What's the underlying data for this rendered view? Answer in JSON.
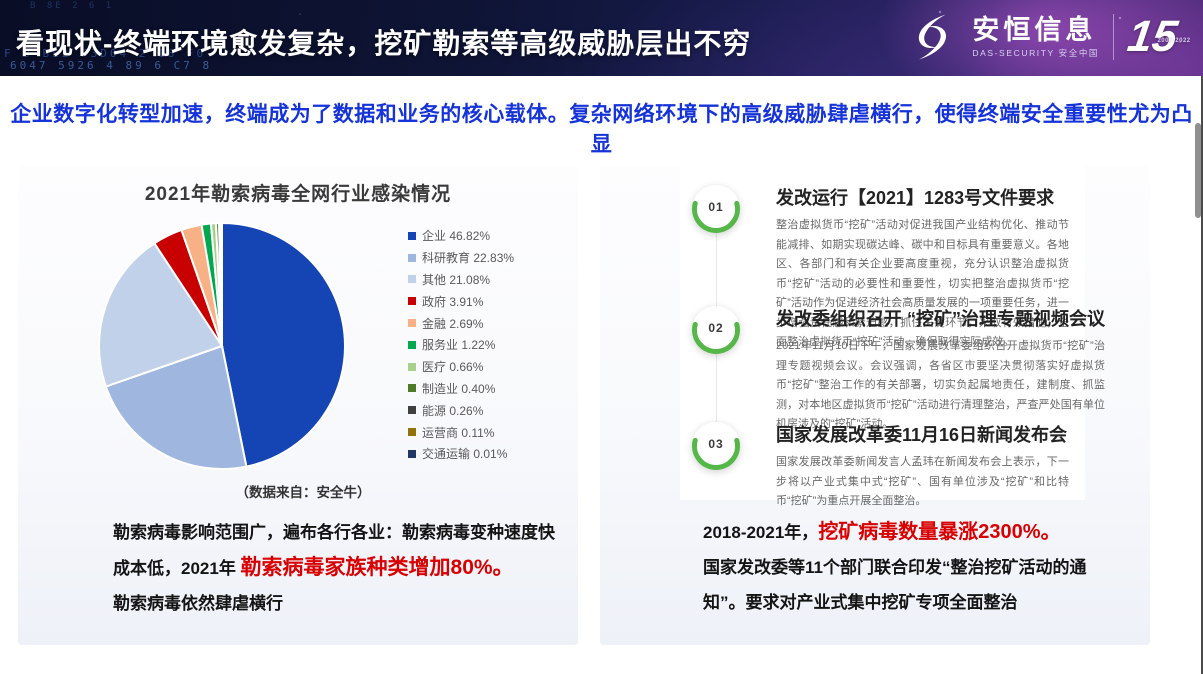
{
  "header": {
    "title": "看现状-终端环境愈发复杂，挖矿勒索等高级威胁层出不穷",
    "hex": {
      "line0": "B 8E 2 6 1",
      "line1": "F 0 BE2 F3D04 2 18 F0",
      "line2": "6047 5926 4 89 6 C7 8"
    },
    "logo": {
      "name": "安恒信息",
      "subtitle": "DAS-SECURITY 安全中国",
      "anniversary": "15",
      "anniversary_badge": "2007-2022"
    }
  },
  "subtitle": "企业数字化转型加速，终端成为了数据和业务的核心载体。复杂网络环境下的高级威胁肆虐横行，使得终端安全重要性尤为凸显",
  "colors": {
    "highlight_red": "#d80000",
    "accent_green": "#55b748",
    "subtitle_blue": "#1533d8"
  },
  "left_card": {
    "source_note": "（数据来自：安全牛）",
    "summary": {
      "pre": "勒索病毒影响范围广，遍布各行各业：勒索病毒变种速度快成本低，2021年 ",
      "highlight": "勒索病毒家族种类增加80%。",
      "post": "勒索病毒依然肆虐横行"
    }
  },
  "chart_data": {
    "type": "pie",
    "title": "2021年勒索病毒全网行业感染情况",
    "source": "（数据来自：安全牛）",
    "legend_position": "right",
    "start_angle": "top",
    "direction": "clockwise",
    "slices": [
      {
        "label": "企业",
        "value": 46.82,
        "color": "#1545b5"
      },
      {
        "label": "科研教育",
        "value": 22.83,
        "color": "#9fb6df"
      },
      {
        "label": "其他",
        "value": 21.08,
        "color": "#c2d1ea"
      },
      {
        "label": "政府",
        "value": 3.91,
        "color": "#c80000"
      },
      {
        "label": "金融",
        "value": 2.69,
        "color": "#f7b184"
      },
      {
        "label": "服务业",
        "value": 1.22,
        "color": "#00a84f"
      },
      {
        "label": "医疗",
        "value": 0.66,
        "color": "#a8d08d"
      },
      {
        "label": "制造业",
        "value": 0.4,
        "color": "#4f7a28"
      },
      {
        "label": "能源",
        "value": 0.26,
        "color": "#404040"
      },
      {
        "label": "运营商",
        "value": 0.11,
        "color": "#93710b"
      },
      {
        "label": "交通运输",
        "value": 0.01,
        "color": "#203864"
      }
    ]
  },
  "right_card": {
    "timeline": [
      {
        "num": "01",
        "title": "发改运行【2021】1283号文件要求",
        "body": "整治虚拟货币“挖矿”活动对促进我国产业结构优化、推动节能减排、如期实现碳达峰、碳中和目标具有重要意义。各地区、各部门和有关企业要高度重视，充分认识整治虚拟货币“挖矿”活动的必要性和重要性，切实把整治虚拟货币“挖矿”活动作为促进经济社会高质量发展的一项重要任务，进一步增强责任感和紧迫感，抓住关键环节，采取有效措施，全面整治虚拟货币“挖矿”活动，确保取得实际成效。"
      },
      {
        "num": "02",
        "title": "发改委组织召开 “挖矿”治理专题视频会议",
        "body": "2021年11月10日下午，国家发展改革委组织召开虚拟货币“挖矿”治理专题视频会议。会议强调，各省区市要坚决贯彻落实好虚拟货币“挖矿”整治工作的有关部署，切实负起属地责任，建制度、抓监测，对本地区虚拟货币“挖矿”活动进行清理整治，严查严处国有单位机房涉及的“挖矿”活动。"
      },
      {
        "num": "03",
        "title": "国家发展改革委11月16日新闻发布会",
        "body": "国家发展改革委新闻发言人孟玮在新闻发布会上表示，下一步将以产业式集中式“挖矿”、国有单位涉及“挖矿”和比特币“挖矿”为重点开展全面整治。"
      }
    ],
    "summary": {
      "pre": "2018-2021年，",
      "highlight": "挖矿病毒数量暴涨2300%。",
      "post": "国家发改委等11个部门联合印发“整治挖矿活动的通知”。要求对产业式集中挖矿专项全面整治"
    }
  }
}
